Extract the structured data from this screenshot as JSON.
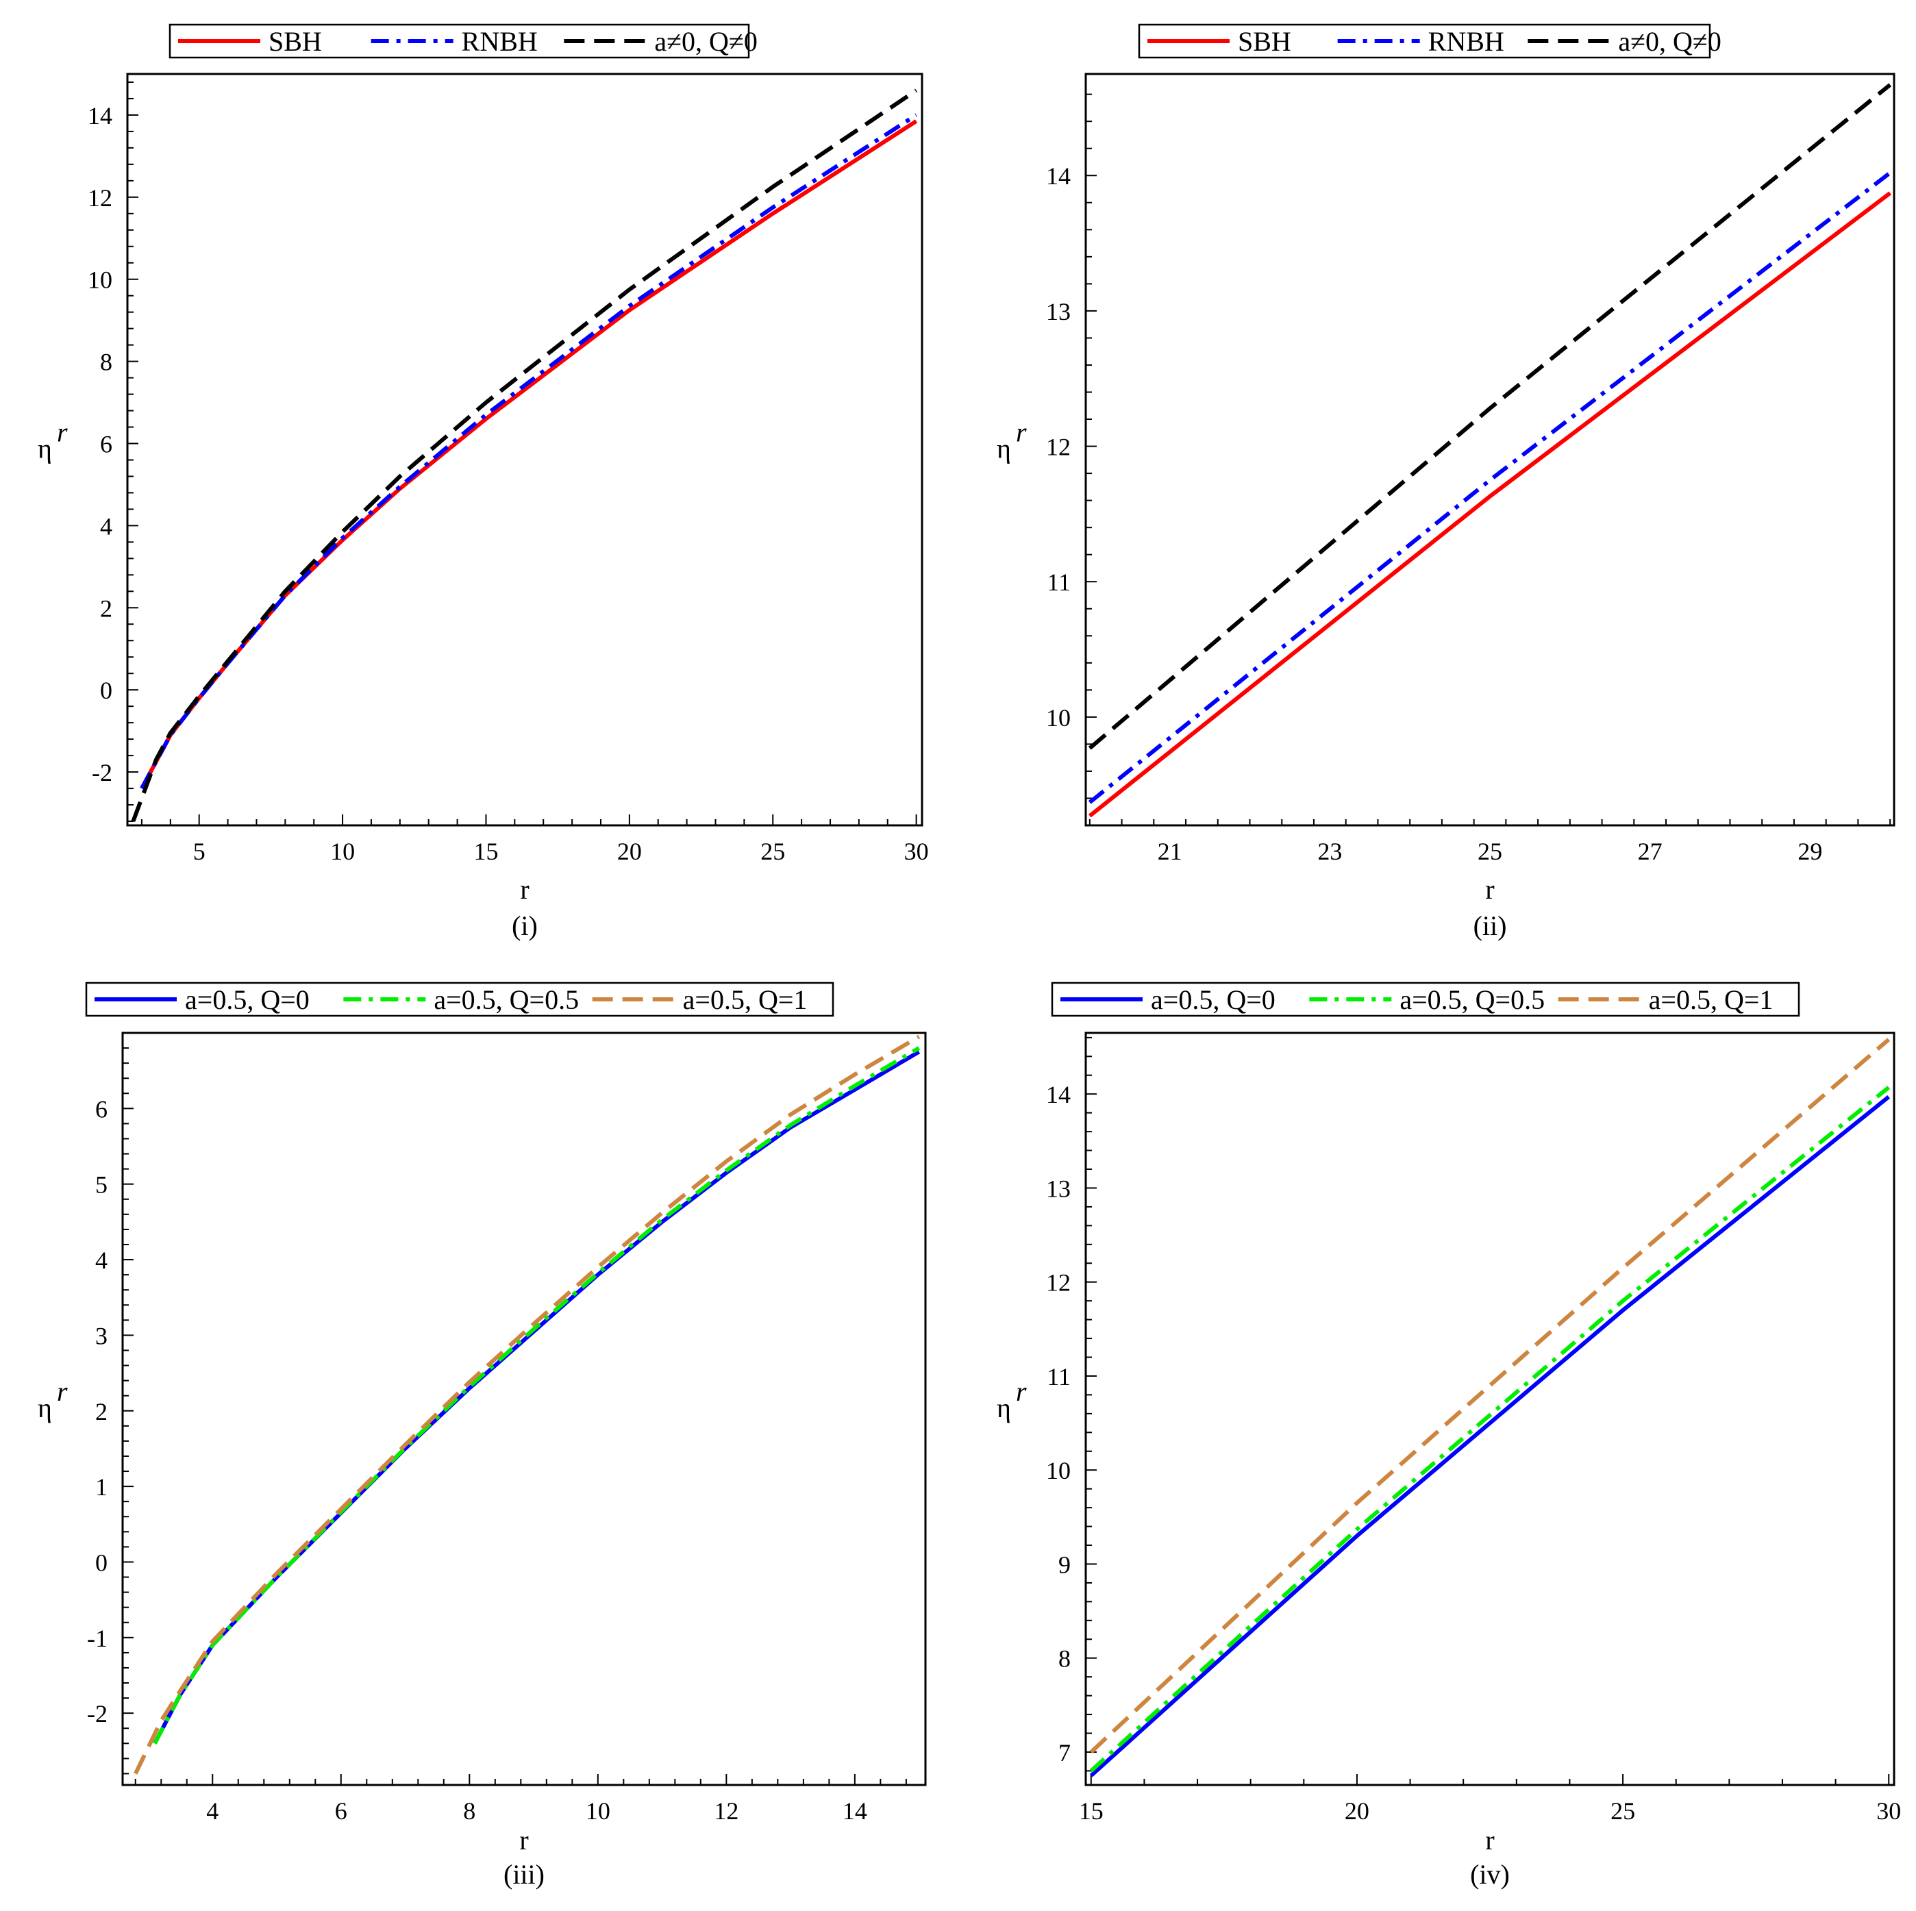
{
  "figure_colors": {
    "red": "#ff0000",
    "blue": "#0000ff",
    "black": "#000000",
    "green": "#00ee00",
    "orange": "#cd853f"
  },
  "chart_data": [
    {
      "type": "line",
      "caption": "(i)",
      "xlabel": "r",
      "ylabel": "η",
      "ylabel_superscript": "r",
      "xlim": [
        2.5,
        30.2
      ],
      "ylim": [
        -3.3,
        15.0
      ],
      "xticks": [
        5,
        10,
        15,
        20,
        25,
        30
      ],
      "xtick_labels": [
        "5",
        "10",
        "15",
        "20",
        "25",
        "30"
      ],
      "yticks": [
        -2,
        0,
        2,
        4,
        6,
        8,
        10,
        12,
        14
      ],
      "ytick_labels": [
        "-2",
        "0",
        "2",
        "4",
        "6",
        "8",
        "10",
        "12",
        "14"
      ],
      "legend_position": "top",
      "series": [
        {
          "name": "SBH",
          "color": "#ff0000",
          "style": "solid",
          "x": [
            3.0,
            4,
            5,
            6,
            8,
            10,
            12,
            15,
            20,
            25,
            30
          ],
          "y": [
            -2.4,
            -1.1,
            -0.2,
            0.65,
            2.3,
            3.65,
            4.9,
            6.6,
            9.25,
            11.6,
            13.85
          ]
        },
        {
          "name": "RNBH",
          "color": "#0000ff",
          "style": "dashdot",
          "x": [
            3.0,
            4,
            5,
            6,
            8,
            10,
            12,
            15,
            20,
            25,
            30
          ],
          "y": [
            -2.4,
            -1.1,
            -0.2,
            0.65,
            2.3,
            3.7,
            4.95,
            6.7,
            9.35,
            11.75,
            14.0
          ]
        },
        {
          "name": "a≠0, Q≠0",
          "color": "#000000",
          "style": "dashed",
          "x": [
            2.7,
            3.5,
            4,
            5,
            6,
            8,
            10,
            12,
            15,
            20,
            25,
            30
          ],
          "y": [
            -3.2,
            -1.7,
            -1.05,
            -0.15,
            0.7,
            2.4,
            3.85,
            5.2,
            7.0,
            9.75,
            12.25,
            14.6
          ]
        }
      ]
    },
    {
      "type": "line",
      "caption": "(ii)",
      "xlabel": "r",
      "ylabel": "η",
      "ylabel_superscript": "r",
      "xlim": [
        19.95,
        30.05
      ],
      "ylim": [
        9.2,
        14.75
      ],
      "xticks": [
        21,
        23,
        25,
        27,
        29
      ],
      "xtick_labels": [
        "21",
        "23",
        "25",
        "27",
        "29"
      ],
      "yticks": [
        10,
        11,
        12,
        13,
        14
      ],
      "ytick_labels": [
        "10",
        "11",
        "12",
        "13",
        "14"
      ],
      "legend_position": "top",
      "series": [
        {
          "name": "SBH",
          "color": "#ff0000",
          "style": "solid",
          "x": [
            20,
            25,
            30
          ],
          "y": [
            9.27,
            11.63,
            13.87
          ]
        },
        {
          "name": "RNBH",
          "color": "#0000ff",
          "style": "dashdot",
          "x": [
            20,
            25,
            30
          ],
          "y": [
            9.37,
            11.75,
            14.02
          ]
        },
        {
          "name": "a≠0, Q≠0",
          "color": "#000000",
          "style": "dashed",
          "x": [
            20,
            25,
            30
          ],
          "y": [
            9.77,
            12.28,
            14.67
          ]
        }
      ]
    },
    {
      "type": "line",
      "caption": "(iii)",
      "xlabel": "r",
      "ylabel": "η",
      "ylabel_superscript": "r",
      "xlim": [
        2.6,
        15.1
      ],
      "ylim": [
        -2.95,
        7.0
      ],
      "xticks": [
        4,
        6,
        8,
        10,
        12,
        14
      ],
      "xtick_labels": [
        "4",
        "6",
        "8",
        "10",
        "12",
        "14"
      ],
      "yticks": [
        -2,
        -1,
        0,
        1,
        2,
        3,
        4,
        5,
        6
      ],
      "ytick_labels": [
        "-2",
        "-1",
        "0",
        "1",
        "2",
        "3",
        "4",
        "5",
        "6"
      ],
      "legend_position": "top",
      "series": [
        {
          "name": "a=0.5, Q=0",
          "color": "#0000ff",
          "style": "solid",
          "x": [
            3.1,
            3.5,
            4,
            5,
            6,
            7,
            8,
            9,
            10,
            11,
            12,
            13,
            14,
            15
          ],
          "y": [
            -2.4,
            -1.75,
            -1.1,
            -0.2,
            0.65,
            1.5,
            2.3,
            3.05,
            3.8,
            4.5,
            5.15,
            5.75,
            6.25,
            6.75
          ]
        },
        {
          "name": "a=0.5, Q=0.5",
          "color": "#00ee00",
          "style": "dashdot",
          "x": [
            3.1,
            3.5,
            4,
            5,
            6,
            7,
            8,
            9,
            10,
            11,
            12,
            13,
            14,
            15
          ],
          "y": [
            -2.4,
            -1.75,
            -1.1,
            -0.2,
            0.66,
            1.51,
            2.32,
            3.08,
            3.82,
            4.53,
            5.18,
            5.78,
            6.3,
            6.8
          ]
        },
        {
          "name": "a=0.5, Q=1",
          "color": "#cd853f",
          "style": "dashed",
          "x": [
            2.8,
            3.2,
            3.5,
            4,
            5,
            6,
            7,
            8,
            9,
            10,
            11,
            12,
            13,
            14,
            15
          ],
          "y": [
            -2.8,
            -2.1,
            -1.7,
            -1.05,
            -0.15,
            0.7,
            1.55,
            2.38,
            3.15,
            3.9,
            4.62,
            5.3,
            5.92,
            6.45,
            6.95
          ]
        }
      ]
    },
    {
      "type": "line",
      "caption": "(iv)",
      "xlabel": "r",
      "ylabel": "η",
      "ylabel_superscript": "r",
      "xlim": [
        14.9,
        30.1
      ],
      "ylim": [
        6.65,
        14.65
      ],
      "xticks": [
        15,
        20,
        25,
        30
      ],
      "xtick_labels": [
        "15",
        "20",
        "25",
        "30"
      ],
      "yticks": [
        7,
        8,
        9,
        10,
        11,
        12,
        13,
        14
      ],
      "ytick_labels": [
        "7",
        "8",
        "9",
        "10",
        "11",
        "12",
        "13",
        "14"
      ],
      "legend_position": "top",
      "series": [
        {
          "name": "a=0.5, Q=0",
          "color": "#0000ff",
          "style": "solid",
          "x": [
            15,
            20,
            25,
            30
          ],
          "y": [
            6.75,
            9.3,
            11.7,
            13.97
          ]
        },
        {
          "name": "a=0.5, Q=0.5",
          "color": "#00ee00",
          "style": "dashdot",
          "x": [
            15,
            20,
            25,
            30
          ],
          "y": [
            6.8,
            9.37,
            11.8,
            14.07
          ]
        },
        {
          "name": "a=0.5, Q=1",
          "color": "#cd853f",
          "style": "dashed",
          "x": [
            15,
            20,
            25,
            30
          ],
          "y": [
            7.0,
            9.65,
            12.15,
            14.58
          ]
        }
      ]
    }
  ]
}
